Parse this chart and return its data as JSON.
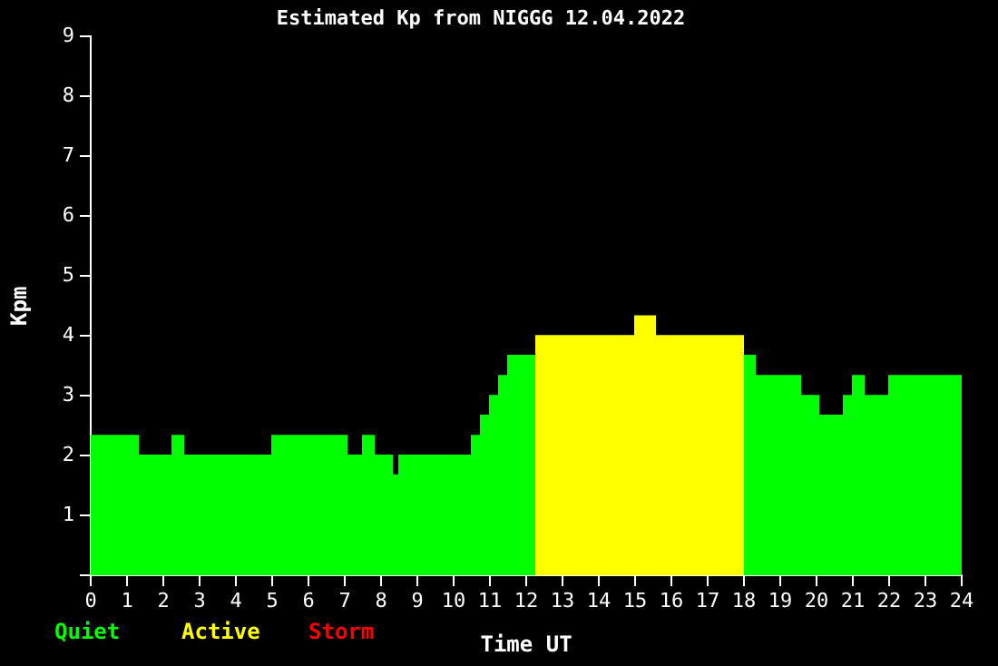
{
  "chart_data": {
    "type": "area",
    "title": "Estimated Kp from NIGGG 12.04.2022",
    "xlabel": "Time UT",
    "ylabel": "Kpm",
    "series": [
      {
        "name": "Quiet",
        "color": "#00ff00",
        "x": [
          0,
          1.3,
          1.3,
          2.25,
          2.25,
          2.55,
          2.55,
          5,
          5,
          7.05,
          7.05,
          7.5,
          7.5,
          7.8,
          7.8,
          8.3,
          8.3,
          8.5,
          8.5,
          10.5,
          10.5,
          10.75,
          10.75,
          11,
          11,
          11.25,
          11.25,
          11.5,
          11.5,
          12.25
        ],
        "values": [
          2.33,
          2.33,
          2,
          2,
          2.33,
          2.33,
          2,
          2,
          2.33,
          2.33,
          2,
          2,
          2.33,
          2.33,
          2,
          2,
          1.67,
          1.67,
          2,
          2,
          2.33,
          2.33,
          2.67,
          2.67,
          3,
          3,
          3.33,
          3.33,
          3.67,
          3.67
        ]
      },
      {
        "color": "#00ff00",
        "x": [
          18,
          18.3,
          18.3,
          19.55,
          19.55,
          20.05,
          20.05,
          20.75,
          20.75,
          21,
          21,
          21.3,
          21.3,
          22,
          22,
          24
        ],
        "values": [
          3.67,
          3.67,
          3.33,
          3.33,
          3,
          3,
          2.67,
          2.67,
          3,
          3,
          3.33,
          3.33,
          3,
          3,
          3.33,
          3.33
        ]
      },
      {
        "name": "Active",
        "color": "#ffff00",
        "x": [
          12.25,
          15,
          15,
          15.55,
          15.55,
          18
        ],
        "values": [
          4,
          4,
          4.33,
          4.33,
          4,
          4
        ]
      },
      {
        "name": "Storm",
        "color": "#ff0000"
      }
    ],
    "xlim": [
      0,
      24
    ],
    "xticks": [
      0,
      1,
      2,
      3,
      4,
      5,
      6,
      7,
      8,
      9,
      10,
      11,
      12,
      13,
      14,
      15,
      16,
      17,
      18,
      19,
      20,
      21,
      22,
      23,
      24
    ],
    "ylim": [
      0,
      9
    ],
    "yticks": [
      {
        "value": 0,
        "label": null
      },
      1,
      2,
      3,
      4,
      5,
      6,
      7,
      8,
      9
    ],
    "grid": false
  }
}
